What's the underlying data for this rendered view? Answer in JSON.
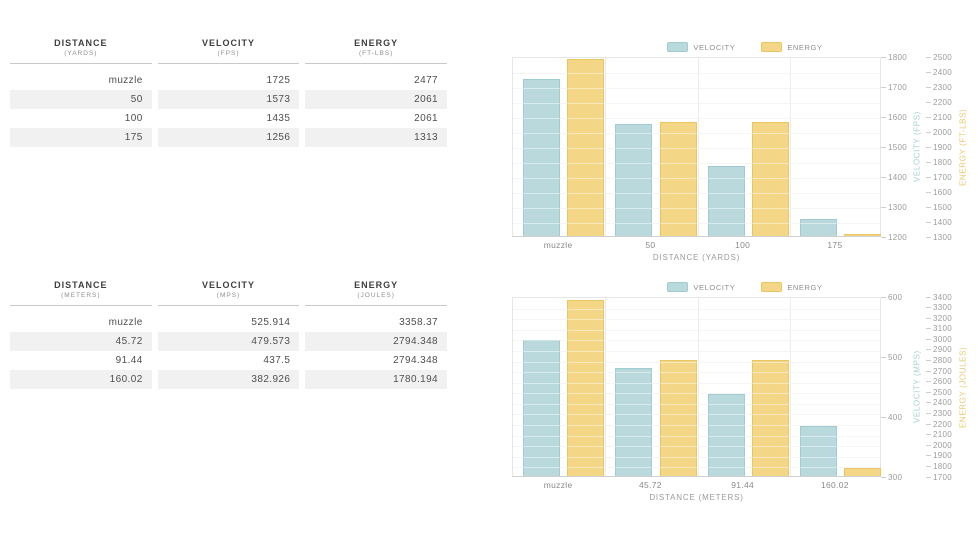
{
  "tables": [
    {
      "name": "imperial",
      "columns": [
        {
          "title": "DISTANCE",
          "unit": "(YARDS)"
        },
        {
          "title": "VELOCITY",
          "unit": "(FPS)"
        },
        {
          "title": "ENERGY",
          "unit": "(FT-LBS)"
        }
      ],
      "rows": [
        [
          "muzzle",
          "1725",
          "2477"
        ],
        [
          "50",
          "1573",
          "2061"
        ],
        [
          "100",
          "1435",
          "2061"
        ],
        [
          "175",
          "1256",
          "1313"
        ]
      ]
    },
    {
      "name": "metric",
      "columns": [
        {
          "title": "DISTANCE",
          "unit": "(METERS)"
        },
        {
          "title": "VELOCITY",
          "unit": "(MPS)"
        },
        {
          "title": "ENERGY",
          "unit": "(JOULES)"
        }
      ],
      "rows": [
        [
          "muzzle",
          "525.914",
          "3358.37"
        ],
        [
          "45.72",
          "479.573",
          "2794.348"
        ],
        [
          "91.44",
          "437.5",
          "2794.348"
        ],
        [
          "160.02",
          "382.926",
          "1780.194"
        ]
      ]
    }
  ],
  "chart_data": [
    {
      "type": "bar",
      "categories": [
        "muzzle",
        "50",
        "100",
        "175"
      ],
      "series": [
        {
          "name": "VELOCITY",
          "axis": "velocity",
          "values": [
            1725,
            1573,
            1435,
            1256
          ],
          "fill": "#bad9dc",
          "border": "#a0ccd1"
        },
        {
          "name": "ENERGY",
          "axis": "energy",
          "values": [
            2477,
            2061,
            2061,
            1313
          ],
          "fill": "#f3d787",
          "border": "#eac662"
        }
      ],
      "xlabel": "DISTANCE (YARDS)",
      "legend_position": "top",
      "grid": true,
      "axes": {
        "velocity": {
          "label": "VELOCITY (FPS)",
          "min": 1200,
          "max": 1800,
          "step": 100,
          "color": "#a8cfd3"
        },
        "energy": {
          "label": "ENERGY (FT-LBS)",
          "min": 1300,
          "max": 2500,
          "step": 100,
          "color": "#e9c96e"
        }
      }
    },
    {
      "type": "bar",
      "categories": [
        "muzzle",
        "45.72",
        "91.44",
        "160.02"
      ],
      "series": [
        {
          "name": "VELOCITY",
          "axis": "velocity",
          "values": [
            525.914,
            479.573,
            437.5,
            382.926
          ],
          "fill": "#bad9dc",
          "border": "#a0ccd1"
        },
        {
          "name": "ENERGY",
          "axis": "energy",
          "values": [
            3358.37,
            2794.348,
            2794.348,
            1780.194
          ],
          "fill": "#f3d787",
          "border": "#eac662"
        }
      ],
      "xlabel": "DISTANCE (METERS)",
      "legend_position": "top",
      "grid": true,
      "axes": {
        "velocity": {
          "label": "VELOCITY (MPS)",
          "min": 300,
          "max": 600,
          "step": 100,
          "color": "#a8cfd3"
        },
        "energy": {
          "label": "ENERGY (JOULES)",
          "min": 1700,
          "max": 3400,
          "step": 100,
          "color": "#e9c96e"
        }
      }
    }
  ]
}
